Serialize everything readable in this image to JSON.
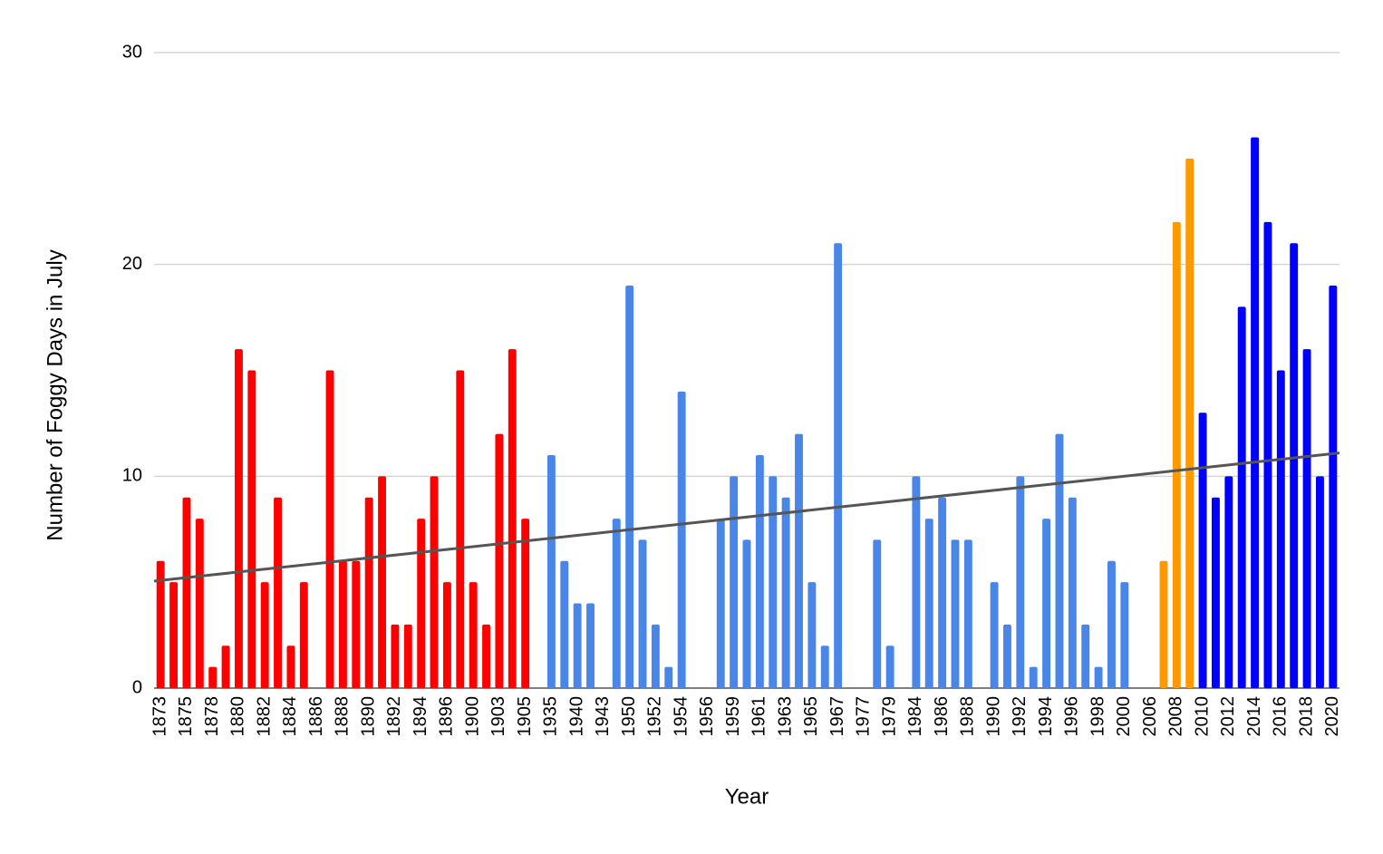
{
  "chart_data": {
    "type": "bar",
    "x_label": "Year",
    "y_label": "Number of Foggy Days in July",
    "categories": [
      "1873",
      null,
      "1875",
      null,
      "1878",
      null,
      "1880",
      null,
      "1882",
      null,
      "1884",
      null,
      "1886",
      null,
      "1888",
      null,
      "1890",
      null,
      "1892",
      null,
      "1894",
      null,
      "1896",
      null,
      "1900",
      null,
      "1903",
      null,
      "1905",
      null,
      "1935",
      null,
      "1940",
      null,
      "1943",
      null,
      "1950",
      null,
      "1952",
      null,
      "1954",
      null,
      "1956",
      null,
      "1959",
      null,
      "1961",
      null,
      "1963",
      null,
      "1965",
      null,
      "1967",
      null,
      "1977",
      null,
      "1979",
      null,
      "1984",
      null,
      "1986",
      null,
      "1988",
      null,
      "1990",
      null,
      "1992",
      null,
      "1994",
      null,
      "1996",
      null,
      "1998",
      null,
      "2000",
      null,
      "2006",
      null,
      "2008",
      null,
      "2010",
      null,
      "2012",
      null,
      "2014",
      null,
      "2016",
      null,
      "2018",
      null,
      "2020"
    ],
    "values": [
      6,
      5,
      9,
      8,
      1,
      2,
      16,
      15,
      5,
      9,
      2,
      5,
      null,
      15,
      6,
      6,
      9,
      10,
      3,
      3,
      8,
      10,
      5,
      15,
      5,
      3,
      12,
      16,
      8,
      null,
      11,
      6,
      4,
      4,
      null,
      8,
      19,
      7,
      3,
      1,
      14,
      null,
      null,
      8,
      10,
      7,
      11,
      10,
      9,
      12,
      5,
      2,
      21,
      null,
      null,
      7,
      2,
      null,
      10,
      8,
      9,
      7,
      7,
      null,
      5,
      3,
      10,
      1,
      8,
      12,
      9,
      3,
      1,
      6,
      5,
      null,
      null,
      6,
      22,
      25,
      13,
      9,
      10,
      18,
      26,
      22,
      15,
      21,
      16,
      10,
      19
    ],
    "colors": [
      "#ff0000",
      "#ff0000",
      "#ff0000",
      "#ff0000",
      "#ff0000",
      "#ff0000",
      "#ff0000",
      "#ff0000",
      "#ff0000",
      "#ff0000",
      "#ff0000",
      "#ff0000",
      null,
      "#ff0000",
      "#ff0000",
      "#ff0000",
      "#ff0000",
      "#ff0000",
      "#ff0000",
      "#ff0000",
      "#ff0000",
      "#ff0000",
      "#ff0000",
      "#ff0000",
      "#ff0000",
      "#ff0000",
      "#ff0000",
      "#ff0000",
      "#ff0000",
      null,
      "#4a86e8",
      "#4a86e8",
      "#4a86e8",
      "#4a86e8",
      null,
      "#4a86e8",
      "#4a86e8",
      "#4a86e8",
      "#4a86e8",
      "#4a86e8",
      "#4a86e8",
      null,
      null,
      "#4a86e8",
      "#4a86e8",
      "#4a86e8",
      "#4a86e8",
      "#4a86e8",
      "#4a86e8",
      "#4a86e8",
      "#4a86e8",
      "#4a86e8",
      "#4a86e8",
      null,
      null,
      "#4a86e8",
      "#4a86e8",
      null,
      "#4a86e8",
      "#4a86e8",
      "#4a86e8",
      "#4a86e8",
      "#4a86e8",
      null,
      "#4a86e8",
      "#4a86e8",
      "#4a86e8",
      "#4a86e8",
      "#4a86e8",
      "#4a86e8",
      "#4a86e8",
      "#4a86e8",
      "#4a86e8",
      "#4a86e8",
      "#4a86e8",
      null,
      null,
      "#ff9900",
      "#ff9900",
      "#ff9900",
      "#0000ff",
      "#0000ff",
      "#0000ff",
      "#0000ff",
      "#0000ff",
      "#0000ff",
      "#0000ff",
      "#0000ff",
      "#0000ff",
      "#0000ff",
      "#0000ff"
    ],
    "trendline": {
      "start": 5.05,
      "end": 11.1,
      "color": "#555555"
    },
    "ylim": [
      0,
      30
    ],
    "yticks": [
      0,
      10,
      20,
      30
    ],
    "grid": true
  }
}
